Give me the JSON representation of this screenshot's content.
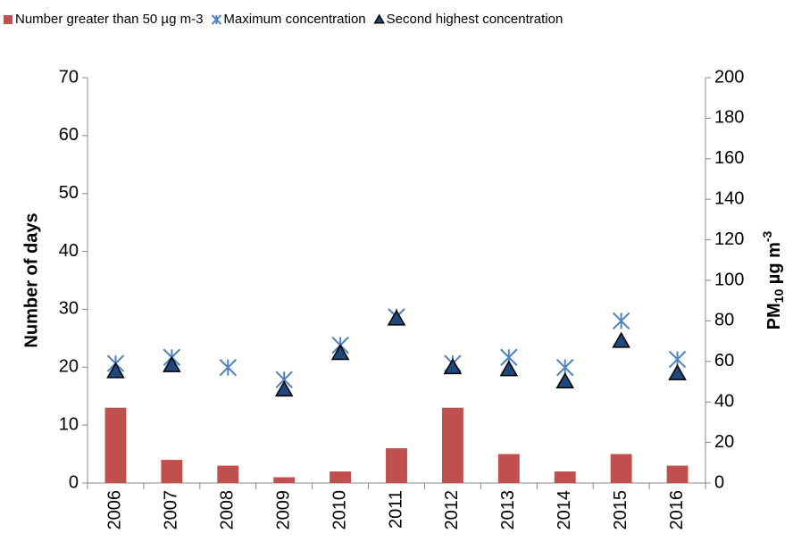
{
  "chart_data": {
    "type": "bar",
    "categories": [
      "2006",
      "2007",
      "2008",
      "2009",
      "2010",
      "2011",
      "2012",
      "2013",
      "2014",
      "2015",
      "2016"
    ],
    "series": [
      {
        "name": "Number greater than 50 µg m-3",
        "type": "bar",
        "color": "#c0504d",
        "values": [
          13,
          4,
          3,
          1,
          2,
          6,
          13,
          5,
          2,
          5,
          3
        ]
      },
      {
        "name": "Maximum concentration",
        "type": "scatter",
        "marker": "asterisk",
        "axis": "y2",
        "color": "#4f81bd",
        "values": [
          59,
          62,
          57,
          51,
          68,
          82,
          59,
          62,
          57,
          80,
          61
        ]
      },
      {
        "name": "Second highest concentration",
        "type": "scatter",
        "marker": "triangle",
        "axis": "y2",
        "color": "#1f497d",
        "values": [
          55,
          58,
          null,
          46,
          64,
          81,
          57,
          56,
          50,
          70,
          54
        ]
      }
    ],
    "y_label": "Number of days",
    "y2_label": {
      "main": "PM",
      "sub": "10",
      "unit": " µg m",
      "sup": "-3"
    },
    "ylim": [
      0,
      70
    ],
    "yticks": [
      0,
      10,
      20,
      30,
      40,
      50,
      60,
      70
    ],
    "y2lim": [
      0,
      200
    ],
    "y2ticks": [
      0,
      20,
      40,
      60,
      80,
      100,
      120,
      140,
      160,
      180,
      200
    ],
    "legend": "top"
  }
}
